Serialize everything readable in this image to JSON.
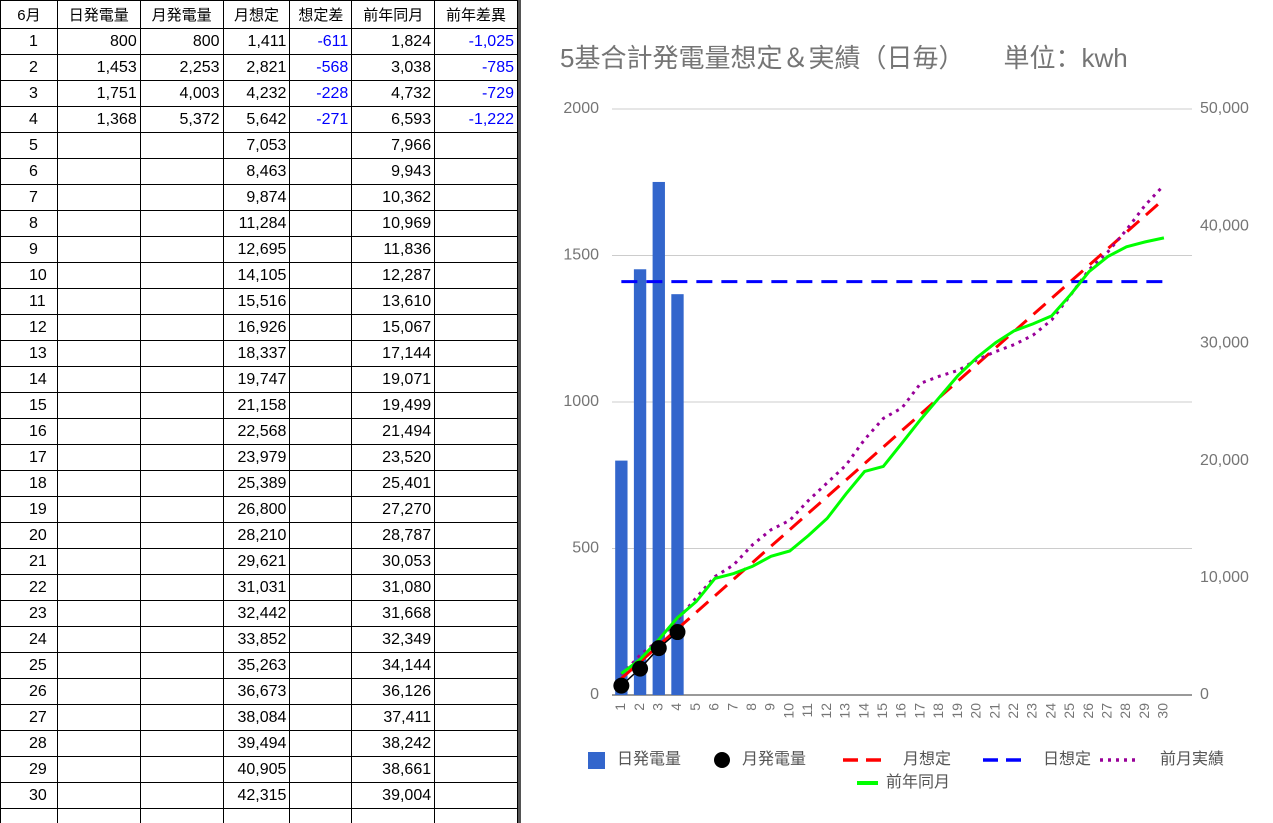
{
  "table": {
    "headers": [
      "6月",
      "日発電量",
      "月発電量",
      "月想定",
      "想定差",
      "前年同月",
      "前年差異"
    ],
    "rows": [
      [
        "1",
        "800",
        "800",
        "1,411",
        "-611",
        "1,824",
        "-1,025"
      ],
      [
        "2",
        "1,453",
        "2,253",
        "2,821",
        "-568",
        "3,038",
        "-785"
      ],
      [
        "3",
        "1,751",
        "4,003",
        "4,232",
        "-228",
        "4,732",
        "-729"
      ],
      [
        "4",
        "1,368",
        "5,372",
        "5,642",
        "-271",
        "6,593",
        "-1,222"
      ],
      [
        "5",
        null,
        null,
        "7,053",
        null,
        "7,966",
        null
      ],
      [
        "6",
        null,
        null,
        "8,463",
        null,
        "9,943",
        null
      ],
      [
        "7",
        null,
        null,
        "9,874",
        null,
        "10,362",
        null
      ],
      [
        "8",
        null,
        null,
        "11,284",
        null,
        "10,969",
        null
      ],
      [
        "9",
        null,
        null,
        "12,695",
        null,
        "11,836",
        null
      ],
      [
        "10",
        null,
        null,
        "14,105",
        null,
        "12,287",
        null
      ],
      [
        "11",
        null,
        null,
        "15,516",
        null,
        "13,610",
        null
      ],
      [
        "12",
        null,
        null,
        "16,926",
        null,
        "15,067",
        null
      ],
      [
        "13",
        null,
        null,
        "18,337",
        null,
        "17,144",
        null
      ],
      [
        "14",
        null,
        null,
        "19,747",
        null,
        "19,071",
        null
      ],
      [
        "15",
        null,
        null,
        "21,158",
        null,
        "19,499",
        null
      ],
      [
        "16",
        null,
        null,
        "22,568",
        null,
        "21,494",
        null
      ],
      [
        "17",
        null,
        null,
        "23,979",
        null,
        "23,520",
        null
      ],
      [
        "18",
        null,
        null,
        "25,389",
        null,
        "25,401",
        null
      ],
      [
        "19",
        null,
        null,
        "26,800",
        null,
        "27,270",
        null
      ],
      [
        "20",
        null,
        null,
        "28,210",
        null,
        "28,787",
        null
      ],
      [
        "21",
        null,
        null,
        "29,621",
        null,
        "30,053",
        null
      ],
      [
        "22",
        null,
        null,
        "31,031",
        null,
        "31,080",
        null
      ],
      [
        "23",
        null,
        null,
        "32,442",
        null,
        "31,668",
        null
      ],
      [
        "24",
        null,
        null,
        "33,852",
        null,
        "32,349",
        null
      ],
      [
        "25",
        null,
        null,
        "35,263",
        null,
        "34,144",
        null
      ],
      [
        "26",
        null,
        null,
        "36,673",
        null,
        "36,126",
        null
      ],
      [
        "27",
        null,
        null,
        "38,084",
        null,
        "37,411",
        null
      ],
      [
        "28",
        null,
        null,
        "39,494",
        null,
        "38,242",
        null
      ],
      [
        "29",
        null,
        null,
        "40,905",
        null,
        "38,661",
        null
      ],
      [
        "30",
        null,
        null,
        "42,315",
        null,
        "39,004",
        null
      ]
    ]
  },
  "chart_data": {
    "type": "combo",
    "title": "5基合計発電量想定＆実績（日毎）　　単位：kwh",
    "categories": [
      "1",
      "2",
      "3",
      "4",
      "5",
      "6",
      "7",
      "8",
      "9",
      "10",
      "11",
      "12",
      "13",
      "14",
      "15",
      "16",
      "17",
      "18",
      "19",
      "20",
      "21",
      "22",
      "23",
      "24",
      "25",
      "26",
      "27",
      "28",
      "29",
      "30"
    ],
    "ylim": [
      0,
      2000
    ],
    "yticks": [
      0,
      500,
      1000,
      1500,
      2000
    ],
    "y2lim": [
      0,
      50000
    ],
    "y2ticks": [
      0,
      {
        "value": 10000,
        "label": "10,000"
      },
      {
        "value": 20000,
        "label": "20,000"
      },
      {
        "value": 30000,
        "label": "30,000"
      },
      {
        "value": 40000,
        "label": "40,000"
      },
      {
        "value": 50000,
        "label": "50,000"
      }
    ],
    "grid": true,
    "legend": "bottom",
    "series": [
      {
        "name": "日発電量",
        "type": "bar",
        "color": "#3366cc",
        "values": [
          800,
          1453,
          1751,
          1368,
          null,
          null,
          null,
          null,
          null,
          null,
          null,
          null,
          null,
          null,
          null,
          null,
          null,
          null,
          null,
          null,
          null,
          null,
          null,
          null,
          null,
          null,
          null,
          null,
          null,
          null
        ]
      },
      {
        "name": "月発電量",
        "type": "scatter",
        "color": "#000000",
        "axis": "y2",
        "values": [
          800,
          2253,
          4003,
          5372,
          null,
          null,
          null,
          null,
          null,
          null,
          null,
          null,
          null,
          null,
          null,
          null,
          null,
          null,
          null,
          null,
          null,
          null,
          null,
          null,
          null,
          null,
          null,
          null,
          null,
          null
        ]
      },
      {
        "name": "月想定",
        "type": "line",
        "style": "dashed",
        "color": "#ff0000",
        "axis": "y2",
        "values": [
          1411,
          2821,
          4232,
          5642,
          7053,
          8463,
          9874,
          11284,
          12695,
          14105,
          15516,
          16926,
          18337,
          19747,
          21158,
          22568,
          23979,
          25389,
          26800,
          28210,
          29621,
          31031,
          32442,
          33852,
          35263,
          36673,
          38084,
          39494,
          40905,
          42315
        ]
      },
      {
        "name": "日想定",
        "type": "line",
        "style": "dashed",
        "color": "#0000ff",
        "values": [
          1411,
          1411,
          1411,
          1411,
          1411,
          1411,
          1411,
          1411,
          1411,
          1411,
          1411,
          1411,
          1411,
          1411,
          1411,
          1411,
          1411,
          1411,
          1411,
          1411,
          1411,
          1411,
          1411,
          1411,
          1411,
          1411,
          1411,
          1411,
          1411,
          1411
        ]
      },
      {
        "name": "前月実績",
        "type": "line",
        "style": "dotted",
        "color": "#990099",
        "axis": "y2",
        "values": [
          1700,
          3400,
          4700,
          6400,
          8300,
          10100,
          11100,
          12800,
          14100,
          14900,
          16600,
          18100,
          19600,
          21800,
          23600,
          24500,
          26600,
          27200,
          27700,
          28600,
          29300,
          29900,
          30700,
          32000,
          34100,
          36300,
          37800,
          39700,
          41800,
          43500
        ]
      },
      {
        "name": "前年同月",
        "type": "line",
        "style": "solid",
        "color": "#00ff00",
        "axis": "y2",
        "values": [
          1824,
          3038,
          4732,
          6593,
          7966,
          9943,
          10362,
          10969,
          11836,
          12287,
          13610,
          15067,
          17144,
          19071,
          19499,
          21494,
          23520,
          25401,
          27270,
          28787,
          30053,
          31080,
          31668,
          32349,
          34144,
          36126,
          37411,
          38242,
          38661,
          39004
        ]
      }
    ]
  }
}
